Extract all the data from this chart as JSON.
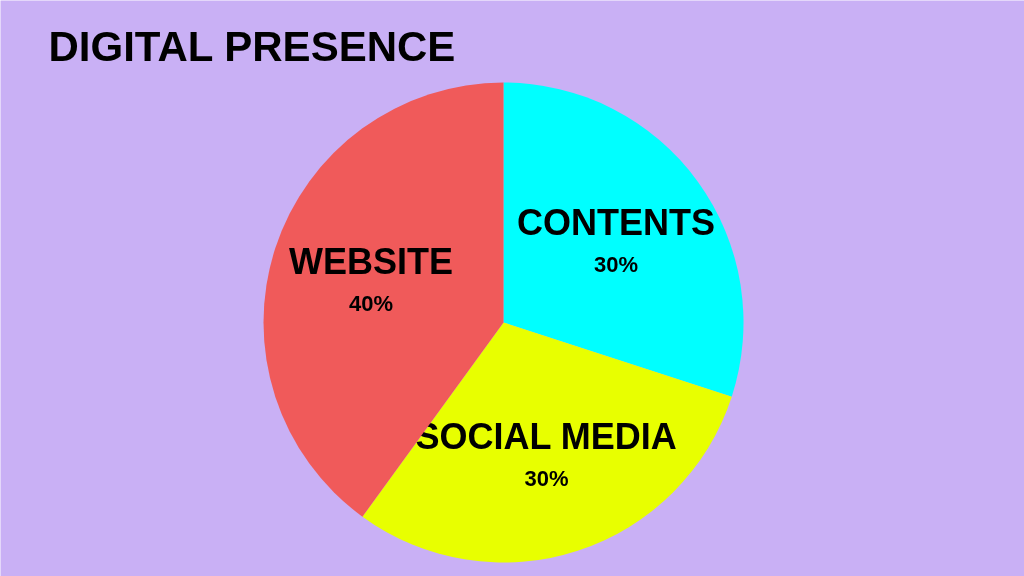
{
  "chart_data": {
    "type": "pie",
    "title": "DIGITAL PRESENCE",
    "categories": [
      "CONTENTS",
      "SOCIAL MEDIA",
      "WEBSITE"
    ],
    "values": [
      30,
      30,
      40
    ],
    "colors": [
      "#00ffff",
      "#e8ff00",
      "#f05a5a"
    ],
    "value_labels": [
      "30%",
      "30%",
      "40%"
    ]
  }
}
